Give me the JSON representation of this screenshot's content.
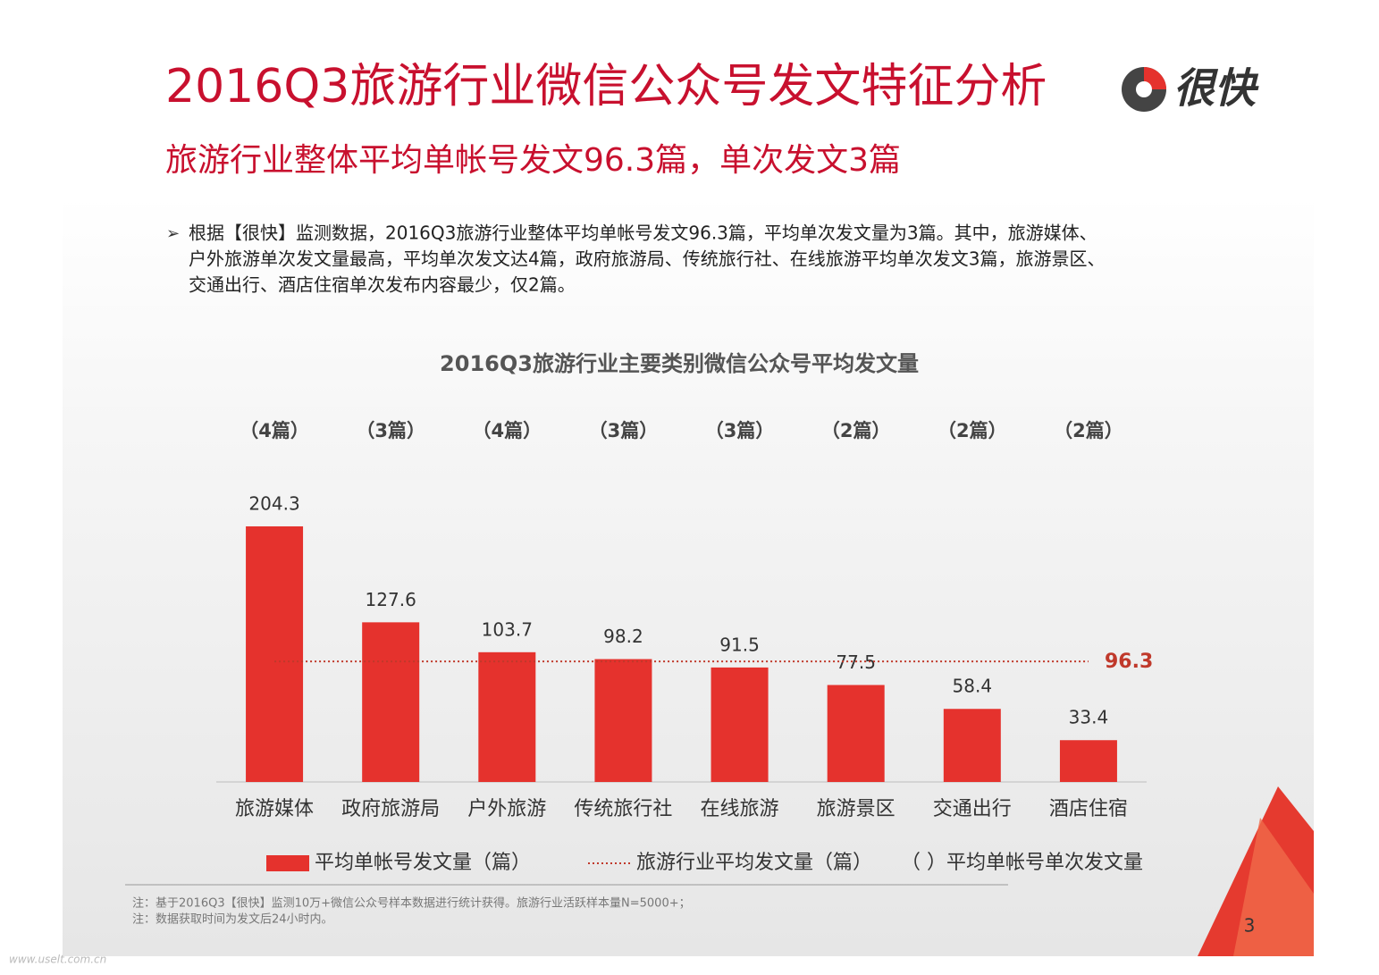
{
  "header": {
    "title": "2016Q3旅游行业微信公众号发文特征分析",
    "logo": "很快",
    "subtitle": "旅游行业整体平均单帐号发文96.3篇，单次发文3篇"
  },
  "bullet": {
    "lines": [
      "根据【很快】监测数据，2016Q3旅游行业整体平均单帐号发文96.3篇，平均单次发文量为3篇。其中，旅游媒体、",
      "户外旅游单次发文量最高，平均单次发文达4篇，政府旅游局、传统旅行社、在线旅游平均单次发文3篇，旅游景区、",
      "交通出行、酒店住宿单次发布内容最少，仅2篇。"
    ]
  },
  "chart_data": {
    "type": "bar",
    "title": "2016Q3旅游行业主要类别微信公众号平均发文量",
    "categories": [
      "旅游媒体",
      "政府旅游局",
      "户外旅游",
      "传统旅行社",
      "在线旅游",
      "旅游景区",
      "交通出行",
      "酒店住宿"
    ],
    "series": [
      {
        "name": "平均单帐号发文量（篇）",
        "color": "#e5322d",
        "values": [
          204.3,
          127.6,
          103.7,
          98.2,
          91.5,
          77.5,
          58.4,
          33.4
        ]
      }
    ],
    "per_post": {
      "name": "（ ）平均单帐号单次发文量",
      "labels": [
        "（4篇）",
        "（3篇）",
        "（4篇）",
        "（3篇）",
        "（3篇）",
        "（2篇）",
        "（2篇）",
        "（2篇）"
      ]
    },
    "average": {
      "name": "旅游行业平均发文量（篇）",
      "value": 96.3,
      "color": "#c0392b"
    },
    "ylim": [
      0,
      225
    ]
  },
  "notes": [
    "注：基于2016Q3【很快】监测10万+微信公众号样本数据进行统计获得。旅游行业活跃样本量N=5000+；",
    "注：数据获取时间为发文后24小时内。"
  ],
  "page_number": "3",
  "watermark": "www.uselt.com.cn"
}
